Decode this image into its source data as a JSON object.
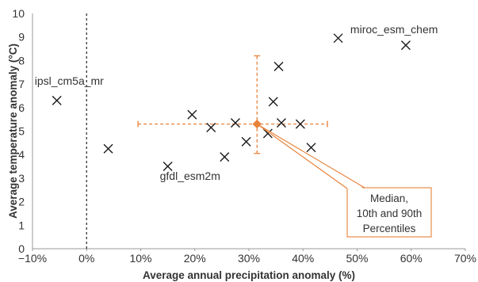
{
  "chart_data": {
    "type": "scatter",
    "xlabel": "Average annual precipitation anomaly (%)",
    "ylabel": "Average temperature anomaly (°C)",
    "xlim": [
      -10,
      70
    ],
    "ylim": [
      0,
      10
    ],
    "x_ticks": [
      -10,
      0,
      10,
      20,
      30,
      40,
      50,
      60,
      70
    ],
    "x_tick_labels": [
      "−10%",
      "0%",
      "10%",
      "20%",
      "30%",
      "40%",
      "50%",
      "60%",
      "70%"
    ],
    "y_ticks": [
      0,
      1,
      2,
      3,
      4,
      5,
      6,
      7,
      8,
      9,
      10
    ],
    "y_tick_labels": [
      "0",
      "1",
      "2",
      "3",
      "4",
      "5",
      "6",
      "7",
      "8",
      "9",
      "10"
    ],
    "grid": false,
    "points": [
      {
        "x": -5.5,
        "y": 6.3,
        "label": "ipsl_cm5a_mr"
      },
      {
        "x": 4.0,
        "y": 4.25,
        "label": ""
      },
      {
        "x": 15.0,
        "y": 3.5,
        "label": "gfdl_esm2m"
      },
      {
        "x": 19.5,
        "y": 5.7,
        "label": ""
      },
      {
        "x": 23.0,
        "y": 5.15,
        "label": ""
      },
      {
        "x": 25.5,
        "y": 3.9,
        "label": ""
      },
      {
        "x": 27.5,
        "y": 5.35,
        "label": ""
      },
      {
        "x": 29.5,
        "y": 4.55,
        "label": ""
      },
      {
        "x": 33.5,
        "y": 4.9,
        "label": ""
      },
      {
        "x": 34.5,
        "y": 6.25,
        "label": ""
      },
      {
        "x": 35.5,
        "y": 7.75,
        "label": ""
      },
      {
        "x": 36.0,
        "y": 5.35,
        "label": ""
      },
      {
        "x": 39.5,
        "y": 5.3,
        "label": ""
      },
      {
        "x": 41.5,
        "y": 4.3,
        "label": ""
      },
      {
        "x": 46.5,
        "y": 8.95,
        "label": ""
      },
      {
        "x": 59.0,
        "y": 8.65,
        "label": "miroc_esm_chem"
      }
    ],
    "zero_reference_line_x": 0,
    "median": {
      "x": 31.5,
      "y": 5.3,
      "x_p10": 9.5,
      "x_p90": 44.5,
      "y_p10": 4.05,
      "y_p90": 8.2,
      "annotation_lines": [
        "Median,",
        "10th and 90th",
        "Percentiles"
      ]
    },
    "colors": {
      "marker": "#1a1a1a",
      "median": "#e8823a",
      "callout_border": "#e8823a",
      "reference_line": "#333333",
      "axis": "#999999"
    }
  }
}
